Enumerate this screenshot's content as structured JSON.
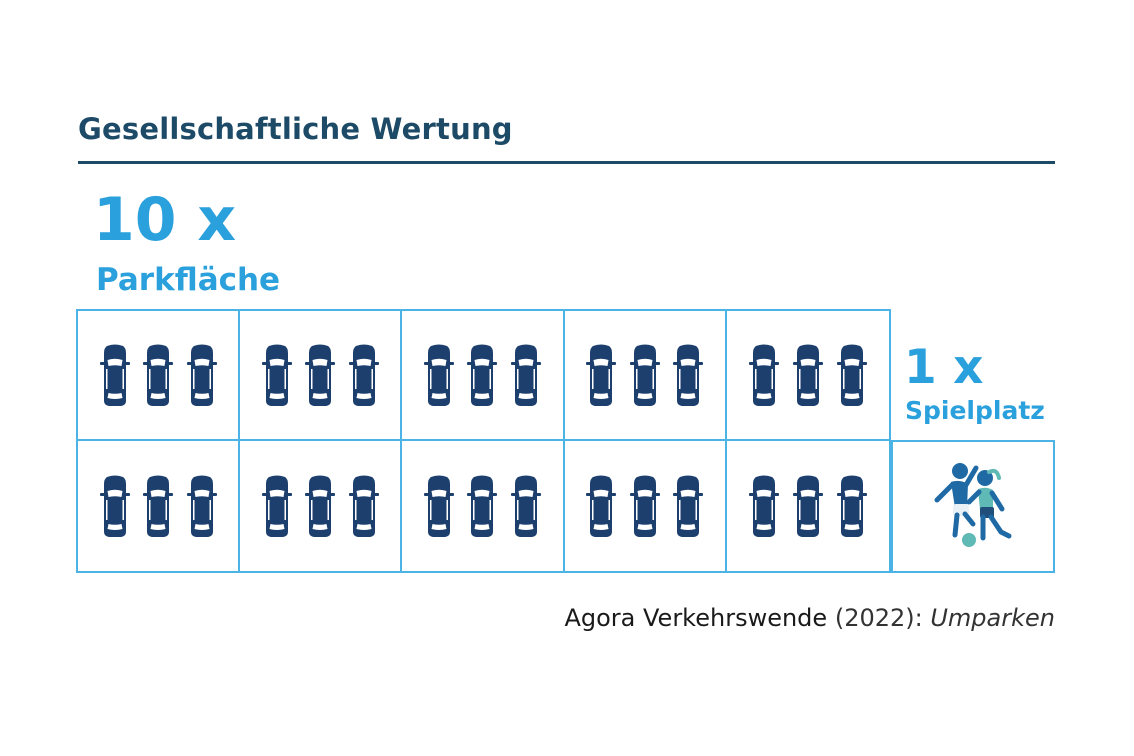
{
  "title": "Gesellschaftliche Wertung",
  "parking": {
    "count_label": "10 x",
    "label": "Parkfläche",
    "rows": 2,
    "cols": 5,
    "cars_per_cell": 3,
    "icon": "car-icon"
  },
  "playground": {
    "count_label": "1 x",
    "label": "Spielplatz",
    "icon": "children-playing-icon"
  },
  "source": {
    "author": "Agora Verkehrswende",
    "year": "(2022):",
    "work": "Umparken"
  },
  "colors": {
    "title": "#1d4a66",
    "accent": "#2aa0dc",
    "border": "#4cb3e6",
    "car": "#1d3f6e",
    "child_dark": "#1f6aa5",
    "child_teal": "#5fb9b5"
  }
}
